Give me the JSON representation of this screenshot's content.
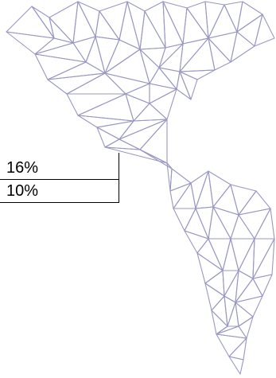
{
  "map": {
    "name": "americas-polygon-map",
    "line_color": "#9a97c4"
  },
  "stats": [
    {
      "value": "16%"
    },
    {
      "value": "10%"
    }
  ]
}
